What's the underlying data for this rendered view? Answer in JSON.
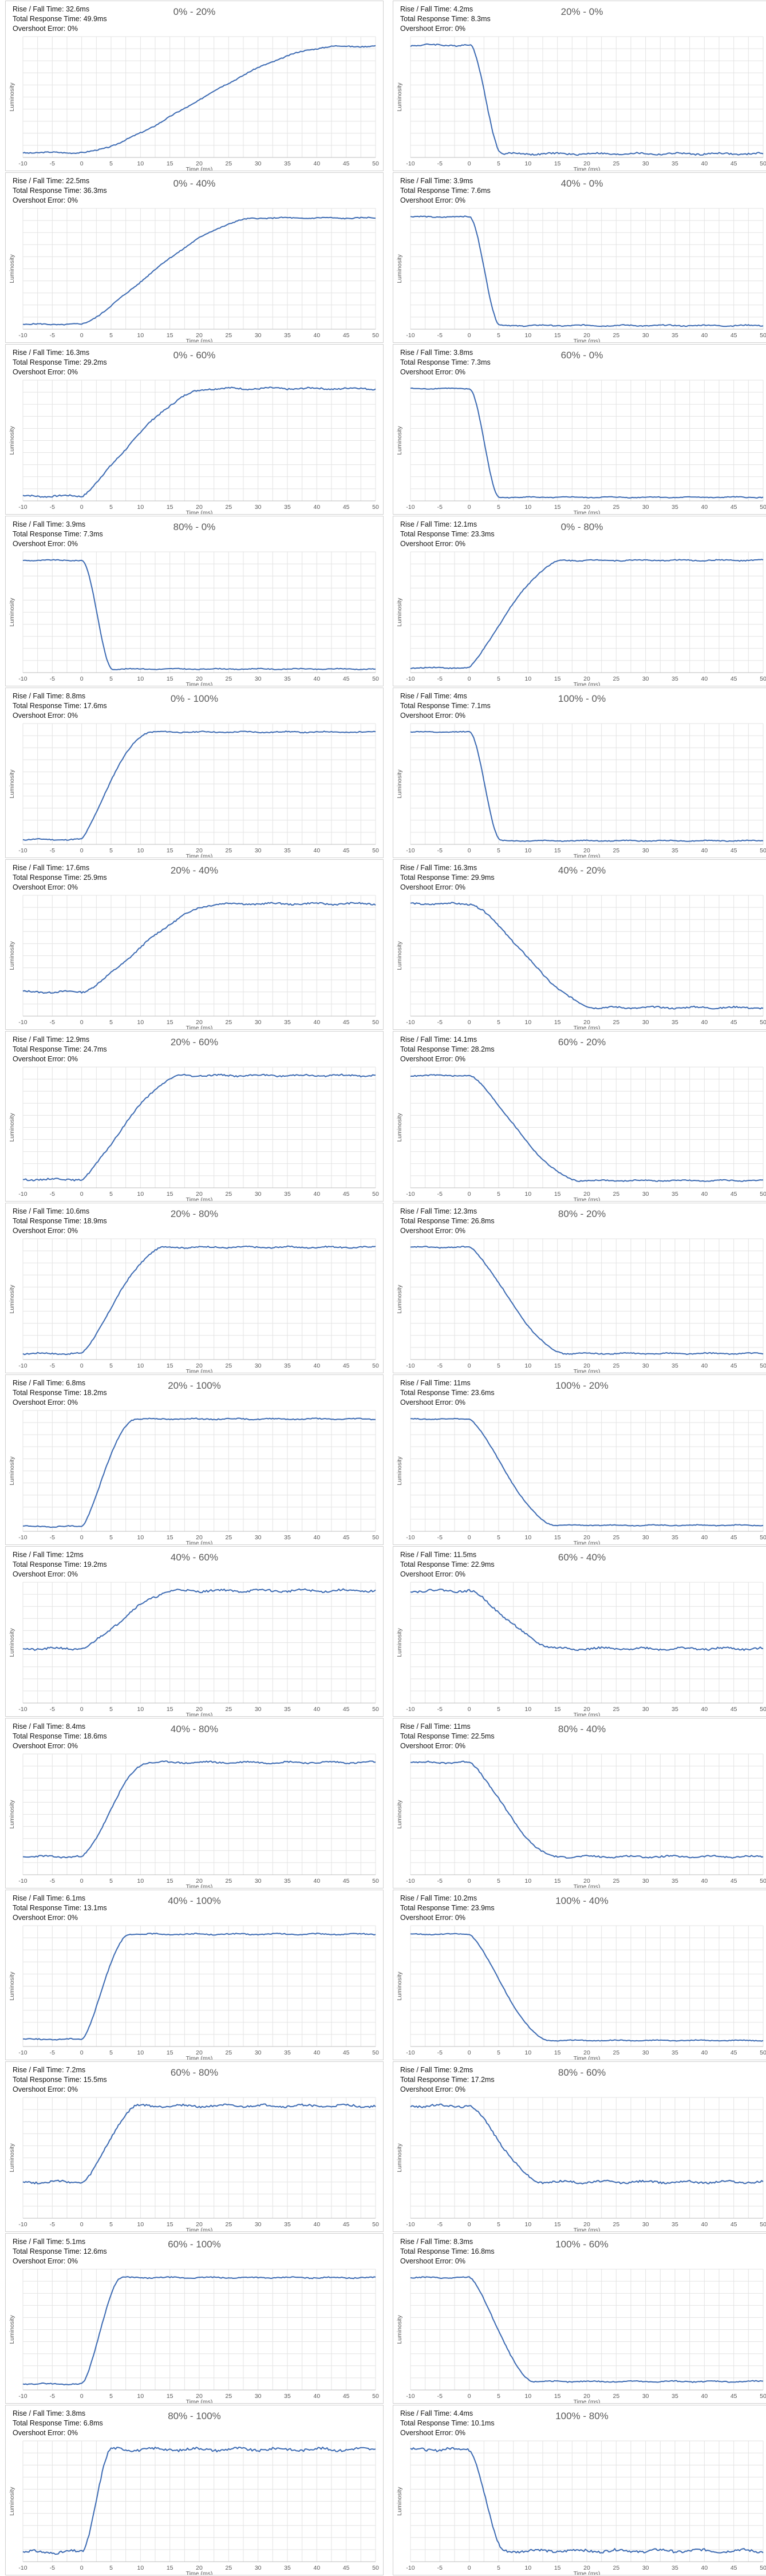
{
  "labels": {
    "rise_fall": "Rise / Fall Time",
    "total_response": "Total Response Time",
    "overshoot": "Overshoot Error"
  },
  "axes": {
    "xlabel": "Time (ms)",
    "ylabel": "Luminosity",
    "xticks": [
      "-10",
      "-5",
      "0",
      "5",
      "10",
      "15",
      "20",
      "25",
      "30",
      "35",
      "40",
      "45",
      "50"
    ]
  },
  "colors": {
    "line": "#3d6bb3",
    "grid": "#e3e3e3",
    "axis": "#bdbdbd"
  },
  "chart_data": [
    {
      "type": "line",
      "title": "0% - 20%",
      "rise_fall": "32.6ms",
      "total_response": "49.9ms",
      "overshoot": "0%",
      "direction": "rise",
      "start_ms": 0,
      "duration_ms": 32.6,
      "steepness": 1.2,
      "start_level": 0.04,
      "end_level": 0.92,
      "noise": 0.004,
      "xlabel": "Time (ms)",
      "ylabel": "Luminosity",
      "xlim": [
        -10,
        50
      ]
    },
    {
      "type": "line",
      "title": "20% - 0%",
      "rise_fall": "4.2ms",
      "total_response": "8.3ms",
      "overshoot": "0%",
      "direction": "fall",
      "start_ms": 0,
      "duration_ms": 4.2,
      "steepness": 1.0,
      "start_level": 0.93,
      "end_level": 0.03,
      "noise": 0.006,
      "xlabel": "Time (ms)",
      "ylabel": "Luminosity",
      "xlim": [
        -10,
        50
      ]
    },
    {
      "type": "line",
      "title": "0% - 40%",
      "rise_fall": "22.5ms",
      "total_response": "36.3ms",
      "overshoot": "0%",
      "direction": "rise",
      "start_ms": 0,
      "duration_ms": 22.5,
      "steepness": 1.5,
      "start_level": 0.04,
      "end_level": 0.92,
      "noise": 0.004,
      "xlabel": "Time (ms)",
      "ylabel": "Luminosity",
      "xlim": [
        -10,
        50
      ]
    },
    {
      "type": "line",
      "title": "40% - 0%",
      "rise_fall": "3.9ms",
      "total_response": "7.6ms",
      "overshoot": "0%",
      "direction": "fall",
      "start_ms": 0,
      "duration_ms": 3.9,
      "steepness": 1.0,
      "start_level": 0.93,
      "end_level": 0.03,
      "noise": 0.004,
      "xlabel": "Time (ms)",
      "ylabel": "Luminosity",
      "xlim": [
        -10,
        50
      ]
    },
    {
      "type": "line",
      "title": "0% - 60%",
      "rise_fall": "16.3ms",
      "total_response": "29.2ms",
      "overshoot": "0%",
      "direction": "rise",
      "start_ms": 0,
      "duration_ms": 16.3,
      "steepness": 1.6,
      "start_level": 0.04,
      "end_level": 0.93,
      "noise": 0.006,
      "xlabel": "Time (ms)",
      "ylabel": "Luminosity",
      "xlim": [
        -10,
        50
      ]
    },
    {
      "type": "line",
      "title": "60% - 0%",
      "rise_fall": "3.8ms",
      "total_response": "7.3ms",
      "overshoot": "0%",
      "direction": "fall",
      "start_ms": 0,
      "duration_ms": 3.8,
      "steepness": 1.0,
      "start_level": 0.93,
      "end_level": 0.03,
      "noise": 0.003,
      "xlabel": "Time (ms)",
      "ylabel": "Luminosity",
      "xlim": [
        -10,
        50
      ]
    },
    {
      "type": "line",
      "title": "80% - 0%",
      "rise_fall": "3.9ms",
      "total_response": "7.3ms",
      "overshoot": "0%",
      "direction": "fall",
      "start_ms": 0,
      "duration_ms": 3.9,
      "steepness": 1.0,
      "start_level": 0.93,
      "end_level": 0.03,
      "noise": 0.003,
      "xlabel": "Time (ms)",
      "ylabel": "Luminosity",
      "xlim": [
        -10,
        50
      ]
    },
    {
      "type": "line",
      "title": "0% - 80%",
      "rise_fall": "12.1ms",
      "total_response": "23.3ms",
      "overshoot": "0%",
      "direction": "rise",
      "start_ms": 0,
      "duration_ms": 12.1,
      "steepness": 1.6,
      "start_level": 0.04,
      "end_level": 0.93,
      "noise": 0.004,
      "xlabel": "Time (ms)",
      "ylabel": "Luminosity",
      "xlim": [
        -10,
        50
      ]
    },
    {
      "type": "line",
      "title": "0% - 100%",
      "rise_fall": "8.8ms",
      "total_response": "17.6ms",
      "overshoot": "0%",
      "direction": "rise",
      "start_ms": 0,
      "duration_ms": 8.8,
      "steepness": 1.6,
      "start_level": 0.04,
      "end_level": 0.93,
      "noise": 0.004,
      "xlabel": "Time (ms)",
      "ylabel": "Luminosity",
      "xlim": [
        -10,
        50
      ]
    },
    {
      "type": "line",
      "title": "100% - 0%",
      "rise_fall": "4ms",
      "total_response": "7.1ms",
      "overshoot": "0%",
      "direction": "fall",
      "start_ms": 0,
      "duration_ms": 4,
      "steepness": 1.0,
      "start_level": 0.93,
      "end_level": 0.03,
      "noise": 0.003,
      "xlabel": "Time (ms)",
      "ylabel": "Luminosity",
      "xlim": [
        -10,
        50
      ]
    },
    {
      "type": "line",
      "title": "20% - 40%",
      "rise_fall": "17.6ms",
      "total_response": "25.9ms",
      "overshoot": "0%",
      "direction": "rise",
      "start_ms": 0,
      "duration_ms": 17.6,
      "steepness": 1.4,
      "start_level": 0.2,
      "end_level": 0.93,
      "noise": 0.006,
      "xlabel": "Time (ms)",
      "ylabel": "Luminosity",
      "xlim": [
        -10,
        50
      ]
    },
    {
      "type": "line",
      "title": "40% - 20%",
      "rise_fall": "16.3ms",
      "total_response": "29.9ms",
      "overshoot": "0%",
      "direction": "fall",
      "start_ms": 0,
      "duration_ms": 16.3,
      "steepness": 1.3,
      "start_level": 0.93,
      "end_level": 0.07,
      "noise": 0.006,
      "xlabel": "Time (ms)",
      "ylabel": "Luminosity",
      "xlim": [
        -10,
        50
      ]
    },
    {
      "type": "line",
      "title": "20% - 60%",
      "rise_fall": "12.9ms",
      "total_response": "24.7ms",
      "overshoot": "0%",
      "direction": "rise",
      "start_ms": 0,
      "duration_ms": 12.9,
      "steepness": 1.5,
      "start_level": 0.07,
      "end_level": 0.93,
      "noise": 0.006,
      "xlabel": "Time (ms)",
      "ylabel": "Luminosity",
      "xlim": [
        -10,
        50
      ]
    },
    {
      "type": "line",
      "title": "60% - 20%",
      "rise_fall": "14.1ms",
      "total_response": "28.2ms",
      "overshoot": "0%",
      "direction": "fall",
      "start_ms": 0,
      "duration_ms": 14.1,
      "steepness": 1.4,
      "start_level": 0.93,
      "end_level": 0.06,
      "noise": 0.004,
      "xlabel": "Time (ms)",
      "ylabel": "Luminosity",
      "xlim": [
        -10,
        50
      ]
    },
    {
      "type": "line",
      "title": "20% - 80%",
      "rise_fall": "10.6ms",
      "total_response": "18.9ms",
      "overshoot": "0%",
      "direction": "rise",
      "start_ms": 0,
      "duration_ms": 10.6,
      "steepness": 1.5,
      "start_level": 0.05,
      "end_level": 0.93,
      "noise": 0.005,
      "xlabel": "Time (ms)",
      "ylabel": "Luminosity",
      "xlim": [
        -10,
        50
      ]
    },
    {
      "type": "line",
      "title": "80% - 20%",
      "rise_fall": "12.3ms",
      "total_response": "26.8ms",
      "overshoot": "0%",
      "direction": "fall",
      "start_ms": 0,
      "duration_ms": 12.3,
      "steepness": 1.4,
      "start_level": 0.93,
      "end_level": 0.05,
      "noise": 0.004,
      "xlabel": "Time (ms)",
      "ylabel": "Luminosity",
      "xlim": [
        -10,
        50
      ]
    },
    {
      "type": "line",
      "title": "20% - 100%",
      "rise_fall": "6.8ms",
      "total_response": "18.2ms",
      "overshoot": "0%",
      "direction": "rise",
      "start_ms": 0,
      "duration_ms": 6.8,
      "steepness": 1.4,
      "start_level": 0.04,
      "end_level": 0.93,
      "noise": 0.004,
      "xlabel": "Time (ms)",
      "ylabel": "Luminosity",
      "xlim": [
        -10,
        50
      ]
    },
    {
      "type": "line",
      "title": "100% - 20%",
      "rise_fall": "11ms",
      "total_response": "23.6ms",
      "overshoot": "0%",
      "direction": "fall",
      "start_ms": 0,
      "duration_ms": 11,
      "steepness": 1.4,
      "start_level": 0.93,
      "end_level": 0.05,
      "noise": 0.003,
      "xlabel": "Time (ms)",
      "ylabel": "Luminosity",
      "xlim": [
        -10,
        50
      ]
    },
    {
      "type": "line",
      "title": "40% - 60%",
      "rise_fall": "12ms",
      "total_response": "19.2ms",
      "overshoot": "0%",
      "direction": "rise",
      "start_ms": 0,
      "duration_ms": 12,
      "steepness": 1.4,
      "start_level": 0.45,
      "end_level": 0.93,
      "noise": 0.008,
      "xlabel": "Time (ms)",
      "ylabel": "Luminosity",
      "xlim": [
        -10,
        50
      ]
    },
    {
      "type": "line",
      "title": "60% - 40%",
      "rise_fall": "11.5ms",
      "total_response": "22.9ms",
      "overshoot": "0%",
      "direction": "fall",
      "start_ms": 0,
      "duration_ms": 11.5,
      "steepness": 1.4,
      "start_level": 0.93,
      "end_level": 0.45,
      "noise": 0.008,
      "xlabel": "Time (ms)",
      "ylabel": "Luminosity",
      "xlim": [
        -10,
        50
      ]
    },
    {
      "type": "line",
      "title": "40% - 80%",
      "rise_fall": "8.4ms",
      "total_response": "18.6ms",
      "overshoot": "0%",
      "direction": "rise",
      "start_ms": 0,
      "duration_ms": 8.4,
      "steepness": 1.3,
      "start_level": 0.15,
      "end_level": 0.93,
      "noise": 0.006,
      "xlabel": "Time (ms)",
      "ylabel": "Luminosity",
      "xlim": [
        -10,
        50
      ]
    },
    {
      "type": "line",
      "title": "80% - 40%",
      "rise_fall": "11ms",
      "total_response": "22.5ms",
      "overshoot": "0%",
      "direction": "fall",
      "start_ms": 0,
      "duration_ms": 11,
      "steepness": 1.4,
      "start_level": 0.93,
      "end_level": 0.15,
      "noise": 0.006,
      "xlabel": "Time (ms)",
      "ylabel": "Luminosity",
      "xlim": [
        -10,
        50
      ]
    },
    {
      "type": "line",
      "title": "40% - 100%",
      "rise_fall": "6.1ms",
      "total_response": "13.1ms",
      "overshoot": "0%",
      "direction": "rise",
      "start_ms": 0,
      "duration_ms": 6.1,
      "steepness": 1.3,
      "start_level": 0.06,
      "end_level": 0.93,
      "noise": 0.004,
      "xlabel": "Time (ms)",
      "ylabel": "Luminosity",
      "xlim": [
        -10,
        50
      ]
    },
    {
      "type": "line",
      "title": "100% - 40%",
      "rise_fall": "10.2ms",
      "total_response": "23.9ms",
      "overshoot": "0%",
      "direction": "fall",
      "start_ms": 0,
      "duration_ms": 10.2,
      "steepness": 1.4,
      "start_level": 0.93,
      "end_level": 0.05,
      "noise": 0.003,
      "xlabel": "Time (ms)",
      "ylabel": "Luminosity",
      "xlim": [
        -10,
        50
      ]
    },
    {
      "type": "line",
      "title": "60% - 80%",
      "rise_fall": "7.2ms",
      "total_response": "15.5ms",
      "overshoot": "0%",
      "direction": "rise",
      "start_ms": 0,
      "duration_ms": 7.2,
      "steepness": 1.2,
      "start_level": 0.3,
      "end_level": 0.93,
      "noise": 0.008,
      "xlabel": "Time (ms)",
      "ylabel": "Luminosity",
      "xlim": [
        -10,
        50
      ]
    },
    {
      "type": "line",
      "title": "80% - 60%",
      "rise_fall": "9.2ms",
      "total_response": "17.2ms",
      "overshoot": "0%",
      "direction": "fall",
      "start_ms": 0,
      "duration_ms": 9.2,
      "steepness": 1.3,
      "start_level": 0.93,
      "end_level": 0.3,
      "noise": 0.008,
      "xlabel": "Time (ms)",
      "ylabel": "Luminosity",
      "xlim": [
        -10,
        50
      ]
    },
    {
      "type": "line",
      "title": "60% - 100%",
      "rise_fall": "5.1ms",
      "total_response": "12.6ms",
      "overshoot": "0%",
      "direction": "rise",
      "start_ms": 0,
      "duration_ms": 5.1,
      "steepness": 1.2,
      "start_level": 0.05,
      "end_level": 0.93,
      "noise": 0.004,
      "xlabel": "Time (ms)",
      "ylabel": "Luminosity",
      "xlim": [
        -10,
        50
      ]
    },
    {
      "type": "line",
      "title": "100% - 60%",
      "rise_fall": "8.3ms",
      "total_response": "16.8ms",
      "overshoot": "0%",
      "direction": "fall",
      "start_ms": 0,
      "duration_ms": 8.3,
      "steepness": 1.3,
      "start_level": 0.93,
      "end_level": 0.07,
      "noise": 0.004,
      "xlabel": "Time (ms)",
      "ylabel": "Luminosity",
      "xlim": [
        -10,
        50
      ]
    },
    {
      "type": "line",
      "title": "80% - 100%",
      "rise_fall": "3.8ms",
      "total_response": "6.8ms",
      "overshoot": "0%",
      "direction": "rise",
      "start_ms": 0,
      "duration_ms": 3.8,
      "steepness": 1.1,
      "start_level": 0.08,
      "end_level": 0.93,
      "noise": 0.01,
      "xlabel": "Time (ms)",
      "ylabel": "Luminosity",
      "xlim": [
        -10,
        50
      ]
    },
    {
      "type": "line",
      "title": "100% - 80%",
      "rise_fall": "4.4ms",
      "total_response": "10.1ms",
      "overshoot": "0%",
      "direction": "fall",
      "start_ms": 0,
      "duration_ms": 4.4,
      "steepness": 1.1,
      "start_level": 0.93,
      "end_level": 0.09,
      "noise": 0.01,
      "xlabel": "Time (ms)",
      "ylabel": "Luminosity",
      "xlim": [
        -10,
        50
      ]
    }
  ]
}
